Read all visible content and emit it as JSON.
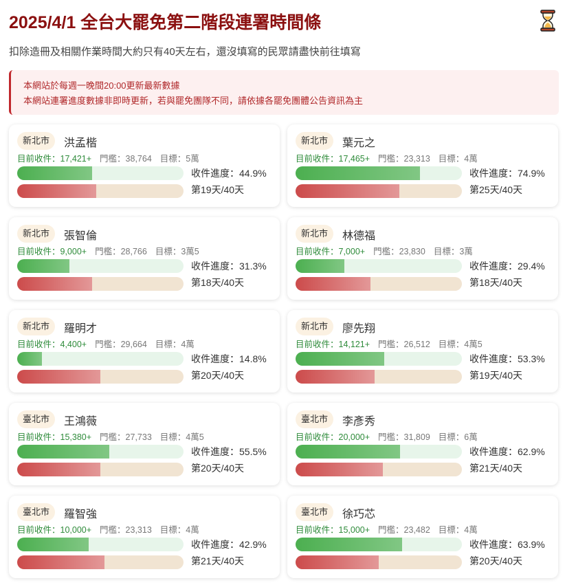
{
  "header": {
    "title": "2025/4/1 全台大罷免第二階段連署時間條",
    "icon": "hourglass-icon",
    "subtitle": "扣除造冊及相關作業時間大約只有40天左右，還沒填寫的民眾請盡快前往填寫"
  },
  "notice": {
    "line1": "本網站於每週一晚間20:00更新最新數據",
    "line2": "本網站連署進度數據非即時更新，若與罷免團隊不同，請依據各罷免團體公告資訊為主"
  },
  "colors": {
    "title": "#8b1010",
    "progress": "#4caf50",
    "time": "#cc4b4b"
  },
  "cards": [
    {
      "city": "新北市",
      "name": "洪孟楷",
      "current": "目前收件：17,421+",
      "threshold": "門檻：38,764",
      "target": "目標：5萬",
      "progress_text": "收件進度：44.9%",
      "progress": 44.9,
      "day_text": "第19天/40天",
      "day": 19,
      "total_days": 40
    },
    {
      "city": "新北市",
      "name": "葉元之",
      "current": "目前收件：17,465+",
      "threshold": "門檻：23,313",
      "target": "目標：4萬",
      "progress_text": "收件進度：74.9%",
      "progress": 74.9,
      "day_text": "第25天/40天",
      "day": 25,
      "total_days": 40
    },
    {
      "city": "新北市",
      "name": "張智倫",
      "current": "目前收件：9,000+",
      "threshold": "門檻：28,766",
      "target": "目標：3萬5",
      "progress_text": "收件進度：31.3%",
      "progress": 31.3,
      "day_text": "第18天/40天",
      "day": 18,
      "total_days": 40
    },
    {
      "city": "新北市",
      "name": "林德福",
      "current": "目前收件：7,000+",
      "threshold": "門檻：23,830",
      "target": "目標：3萬",
      "progress_text": "收件進度：29.4%",
      "progress": 29.4,
      "day_text": "第18天/40天",
      "day": 18,
      "total_days": 40
    },
    {
      "city": "新北市",
      "name": "羅明才",
      "current": "目前收件：4,400+",
      "threshold": "門檻：29,664",
      "target": "目標：4萬",
      "progress_text": "收件進度：14.8%",
      "progress": 14.8,
      "day_text": "第20天/40天",
      "day": 20,
      "total_days": 40
    },
    {
      "city": "新北市",
      "name": "廖先翔",
      "current": "目前收件：14,121+",
      "threshold": "門檻：26,512",
      "target": "目標：4萬5",
      "progress_text": "收件進度：53.3%",
      "progress": 53.3,
      "day_text": "第19天/40天",
      "day": 19,
      "total_days": 40
    },
    {
      "city": "臺北市",
      "name": "王鴻薇",
      "current": "目前收件：15,380+",
      "threshold": "門檻：27,733",
      "target": "目標：4萬5",
      "progress_text": "收件進度：55.5%",
      "progress": 55.5,
      "day_text": "第20天/40天",
      "day": 20,
      "total_days": 40
    },
    {
      "city": "臺北市",
      "name": "李彥秀",
      "current": "目前收件：20,000+",
      "threshold": "門檻：31,809",
      "target": "目標：6萬",
      "progress_text": "收件進度：62.9%",
      "progress": 62.9,
      "day_text": "第21天/40天",
      "day": 21,
      "total_days": 40
    },
    {
      "city": "臺北市",
      "name": "羅智強",
      "current": "目前收件：10,000+",
      "threshold": "門檻：23,313",
      "target": "目標：4萬",
      "progress_text": "收件進度：42.9%",
      "progress": 42.9,
      "day_text": "第21天/40天",
      "day": 21,
      "total_days": 40
    },
    {
      "city": "臺北市",
      "name": "徐巧芯",
      "current": "目前收件：15,000+",
      "threshold": "門檻：23,482",
      "target": "目標：4萬",
      "progress_text": "收件進度：63.9%",
      "progress": 63.9,
      "day_text": "第20天/40天",
      "day": 20,
      "total_days": 40
    }
  ]
}
